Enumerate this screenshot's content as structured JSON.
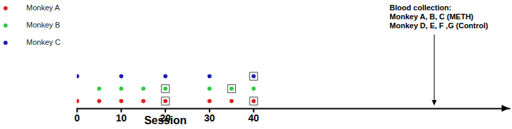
{
  "chart_data": {
    "type": "scatter",
    "x_label": "Session",
    "xlim": [
      0,
      98
    ],
    "xticks": [
      0,
      10,
      20,
      30,
      40
    ],
    "tick_labels": "x",
    "legend": "top-left",
    "series": [
      {
        "name": "Monkey A",
        "color": "#e41e1e",
        "x": [
          0,
          5,
          10,
          15,
          20,
          30,
          35,
          40
        ],
        "boxed": [
          20,
          40
        ]
      },
      {
        "name": "Monkey B",
        "color": "#2ecc40",
        "x": [
          5,
          10,
          15,
          20,
          30,
          35,
          40
        ],
        "boxed": [
          20,
          35
        ]
      },
      {
        "name": "Monkey C",
        "color": "#1f1fb0",
        "x": [
          0,
          10,
          20,
          30,
          40
        ],
        "boxed": [
          40
        ]
      }
    ],
    "annotation": {
      "text": [
        "Blood collection:",
        "Monkey A, B, C (METH)",
        "Monkey D, E, F ,G (Control)"
      ],
      "x": 81
    }
  }
}
